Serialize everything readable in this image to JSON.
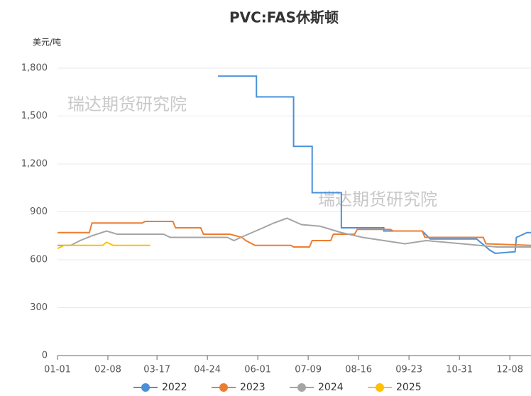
{
  "chart_data": {
    "type": "line",
    "title": "PVC:FAS休斯顿",
    "y_label": "美元/吨",
    "watermarks": [
      "瑞达期货研究院",
      "瑞达期货研究院"
    ],
    "xlim": [
      0,
      357
    ],
    "xticks": [
      {
        "value": 0,
        "label": "01-01"
      },
      {
        "value": 38,
        "label": "02-08"
      },
      {
        "value": 75,
        "label": "03-17"
      },
      {
        "value": 113,
        "label": "04-24"
      },
      {
        "value": 151,
        "label": "06-01"
      },
      {
        "value": 189,
        "label": "07-09"
      },
      {
        "value": 227,
        "label": "08-16"
      },
      {
        "value": 265,
        "label": "09-23"
      },
      {
        "value": 303,
        "label": "10-31"
      },
      {
        "value": 341,
        "label": "12-08"
      }
    ],
    "ylim": [
      0,
      1800
    ],
    "yticks": [
      0,
      300,
      600,
      900,
      {
        "value": 1200,
        "label": "1,200"
      },
      {
        "value": 1500,
        "label": "1,500"
      },
      {
        "value": 1800,
        "label": "1,800"
      }
    ],
    "grid": true,
    "series": [
      {
        "name": "2022",
        "color": "#4a90d9",
        "x": [
          121,
          150,
          150,
          178,
          178,
          192,
          192,
          214,
          214,
          246,
          246,
          275,
          281,
          316,
          326,
          330,
          345,
          346,
          354,
          357
        ],
        "values": [
          1750,
          1750,
          1620,
          1620,
          1310,
          1310,
          1020,
          1020,
          800,
          800,
          780,
          780,
          730,
          730,
          660,
          640,
          650,
          740,
          770,
          770
        ]
      },
      {
        "name": "2023",
        "color": "#ed7d31",
        "x": [
          0,
          24,
          26,
          64,
          66,
          87,
          89,
          108,
          110,
          130,
          139,
          142,
          149,
          176,
          178,
          190,
          192,
          206,
          208,
          224,
          226,
          251,
          253,
          275,
          277,
          321,
          323,
          357
        ],
        "values": [
          770,
          770,
          830,
          830,
          840,
          840,
          800,
          800,
          760,
          760,
          740,
          720,
          690,
          690,
          680,
          680,
          720,
          720,
          760,
          760,
          790,
          790,
          780,
          780,
          740,
          740,
          700,
          690
        ]
      },
      {
        "name": "2024",
        "color": "#a5a5a5",
        "x": [
          0,
          10,
          17,
          26,
          37,
          45,
          80,
          85,
          128,
          133,
          141,
          155,
          163,
          173,
          184,
          198,
          214,
          230,
          246,
          262,
          278,
          305,
          331,
          357
        ],
        "values": [
          690,
          690,
          720,
          750,
          780,
          760,
          760,
          740,
          740,
          720,
          750,
          800,
          830,
          860,
          820,
          810,
          770,
          740,
          720,
          700,
          720,
          700,
          680,
          680
        ]
      },
      {
        "name": "2025",
        "color": "#ffc000",
        "x": [
          0,
          5,
          34,
          37,
          42,
          70
        ],
        "values": [
          670,
          690,
          690,
          710,
          690,
          690
        ]
      }
    ]
  }
}
